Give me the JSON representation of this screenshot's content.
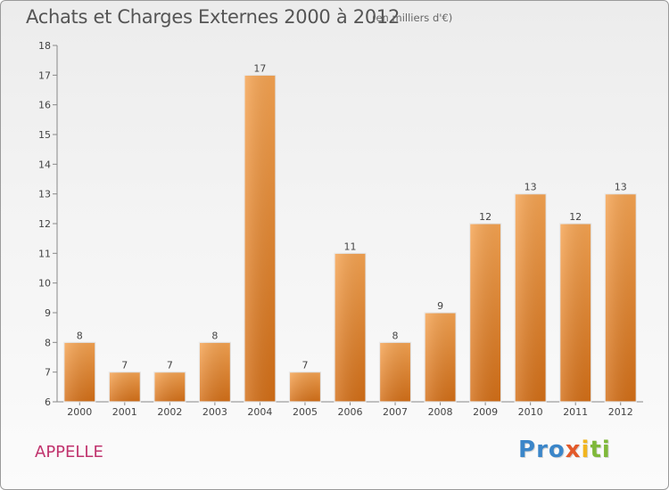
{
  "header": {
    "title": "Achats et Charges Externes 2000 à 2012",
    "unit": "(en milliers d'€)"
  },
  "footer": {
    "commune": "APPELLE",
    "brand": "Proxiti",
    "brand_letters": [
      {
        "ch": "P",
        "color": "#3b86c9"
      },
      {
        "ch": "r",
        "color": "#3b86c9"
      },
      {
        "ch": "o",
        "color": "#3b86c9"
      },
      {
        "ch": "x",
        "color": "#e35a2a"
      },
      {
        "ch": "i",
        "color": "#f1b51f"
      },
      {
        "ch": "t",
        "color": "#7fb83a"
      },
      {
        "ch": "i",
        "color": "#7fb83a"
      }
    ]
  },
  "chart_data": {
    "type": "bar",
    "categories": [
      "2000",
      "2001",
      "2002",
      "2003",
      "2004",
      "2005",
      "2006",
      "2007",
      "2008",
      "2009",
      "2010",
      "2011",
      "2012"
    ],
    "values": [
      8,
      7,
      7,
      8,
      17,
      7,
      11,
      8,
      9,
      12,
      13,
      12,
      13
    ],
    "ylim": [
      6,
      18
    ],
    "yticks": [
      6,
      7,
      8,
      9,
      10,
      11,
      12,
      13,
      14,
      15,
      16,
      17,
      18
    ],
    "grid": false,
    "bar_color": "#f08a2c"
  }
}
